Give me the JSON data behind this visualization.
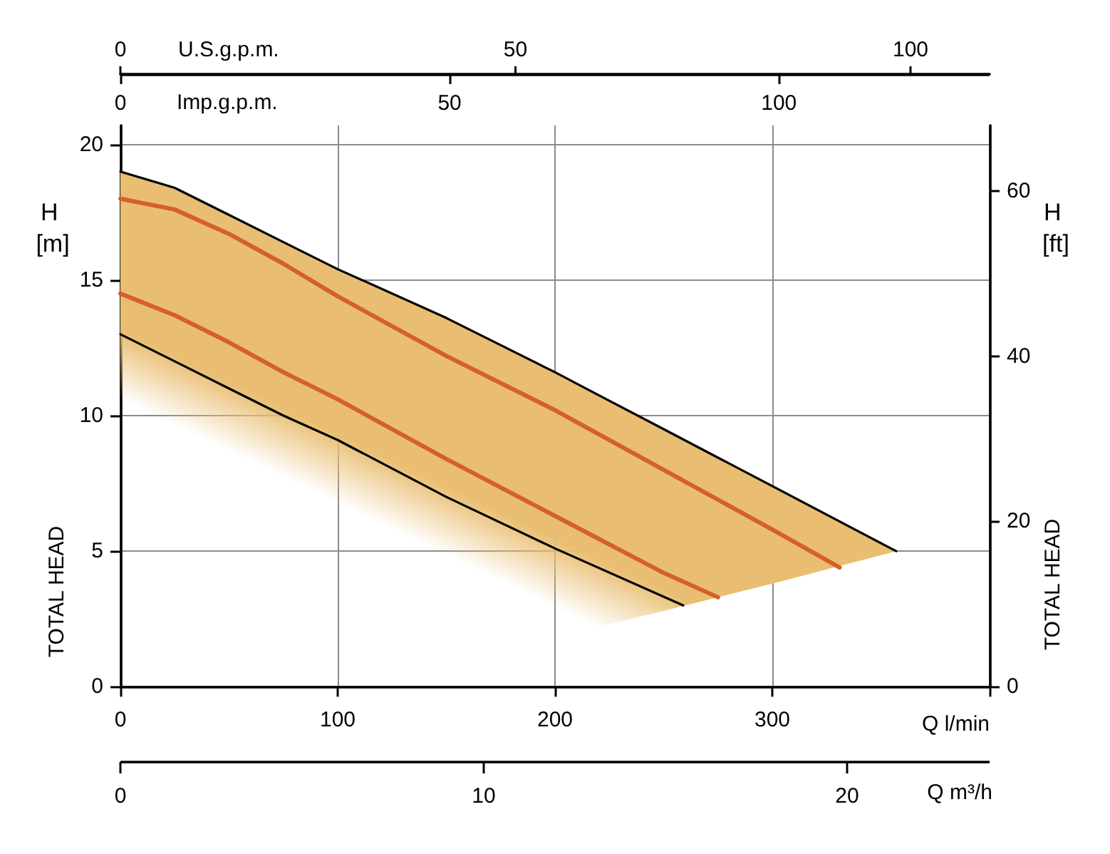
{
  "chart_data": [
    {
      "type": "other",
      "xlabel": "U.S.g.p.m.",
      "annotations": [
        "0",
        "50",
        "100"
      ]
    },
    {
      "type": "line",
      "xlabel": "Q l/min",
      "ylabel": "H [m]",
      "y2label": "H [ft]",
      "x2label": "Imp.g.p.m.",
      "annotations": [
        "TOTAL HEAD",
        "TOTAL HEAD"
      ],
      "xlim": [
        0,
        400
      ],
      "xticks": [
        0,
        100,
        200,
        300,
        {
          "value": 400,
          "label": null
        }
      ],
      "x2lim": [
        0,
        132
      ],
      "x2ticks": [
        0,
        50,
        100
      ],
      "ylim": [
        0,
        20.7
      ],
      "yticks": [
        0,
        5,
        10,
        15,
        20
      ],
      "y2lim": [
        0,
        67.9
      ],
      "y2ticks": [
        0,
        20,
        40,
        60
      ],
      "grid": true,
      "series": [
        {
          "color": "#000000",
          "x": [
            0,
            25,
            50,
            75,
            100,
            150,
            200,
            219,
            250,
            300,
            357
          ],
          "values": [
            19.0,
            18.4,
            17.4,
            16.4,
            15.4,
            13.6,
            11.6,
            10.8,
            9.5,
            7.4,
            5.0
          ],
          "upper": [
            19.0,
            18.4,
            17.4,
            16.4,
            15.4,
            13.6,
            11.6,
            10.8,
            9.5,
            7.4,
            5.0
          ],
          "lower": [
            10.6,
            9.6,
            8.7,
            7.7,
            6.8,
            4.8,
            2.9,
            2.2,
            2.8,
            3.8,
            5.0
          ]
        },
        {
          "color": "#d5602a",
          "x": [
            0,
            25,
            50,
            75,
            100,
            150,
            200,
            250,
            300,
            331
          ],
          "values": [
            18.0,
            17.6,
            16.7,
            15.6,
            14.4,
            12.2,
            10.2,
            8.0,
            5.8,
            4.4
          ]
        },
        {
          "color": "#d5602a",
          "x": [
            0,
            25,
            50,
            75,
            100,
            150,
            200,
            250,
            275
          ],
          "values": [
            14.5,
            13.7,
            12.7,
            11.6,
            10.6,
            8.4,
            6.3,
            4.2,
            3.3
          ]
        },
        {
          "color": "#000000",
          "x": [
            0,
            25,
            50,
            75,
            100,
            150,
            200,
            259
          ],
          "values": [
            13.0,
            12.0,
            11.0,
            10.0,
            9.1,
            7.0,
            5.1,
            3.0
          ]
        }
      ]
    },
    {
      "type": "other",
      "xlabel": "Q m³/h",
      "annotations": [
        "0",
        "10",
        "20"
      ]
    }
  ]
}
